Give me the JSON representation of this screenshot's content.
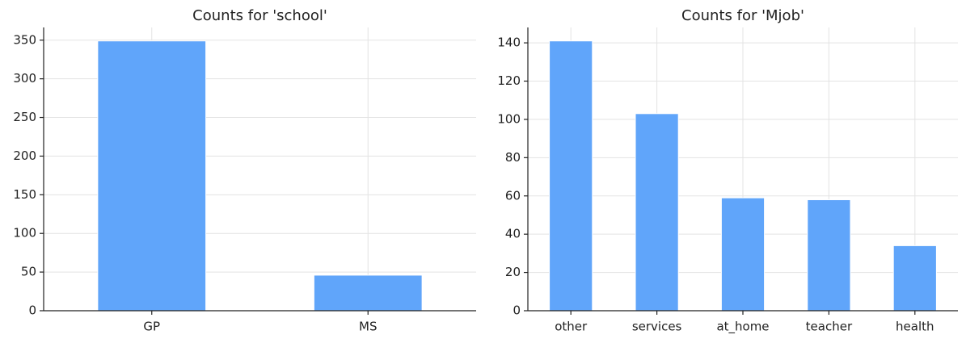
{
  "chart_data": [
    {
      "type": "bar",
      "title": "Counts for 'school'",
      "categories": [
        "GP",
        "MS"
      ],
      "values": [
        349,
        46
      ],
      "color": "#60a5fa",
      "ylim": [
        0,
        366.45
      ],
      "yticks": [
        0,
        50,
        100,
        150,
        200,
        250,
        300,
        350
      ],
      "grid": true
    },
    {
      "type": "bar",
      "title": "Counts for 'Mjob'",
      "categories": [
        "other",
        "services",
        "at_home",
        "teacher",
        "health"
      ],
      "values": [
        141,
        103,
        59,
        58,
        34
      ],
      "color": "#60a5fa",
      "ylim": [
        0,
        148.05
      ],
      "yticks": [
        0,
        20,
        40,
        60,
        80,
        100,
        120,
        140
      ],
      "grid": true
    }
  ]
}
